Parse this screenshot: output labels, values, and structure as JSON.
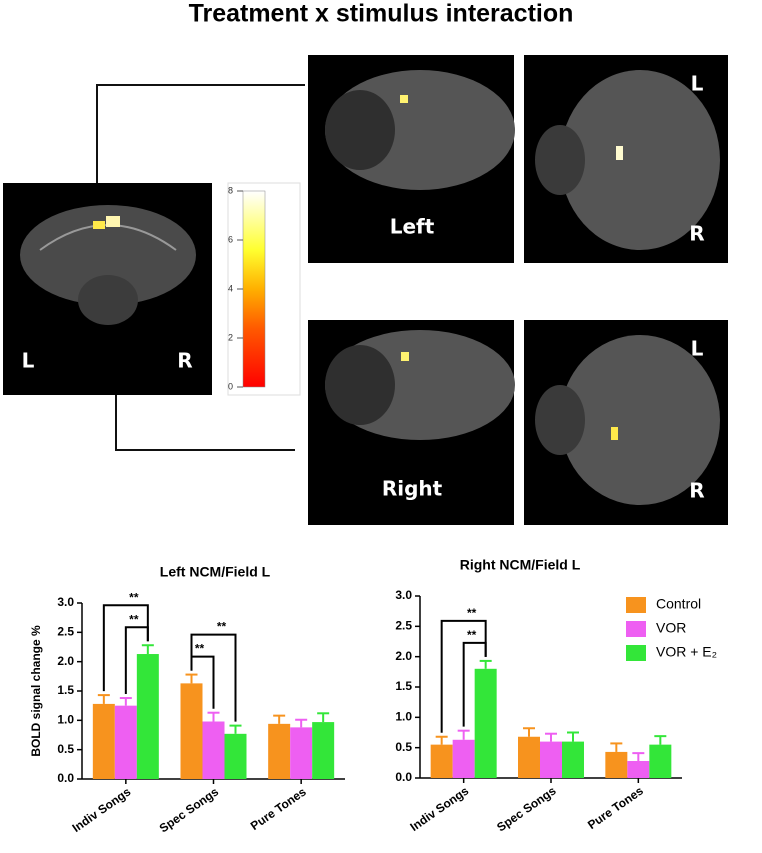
{
  "title": "Treatment x stimulus interaction",
  "coronal": {
    "left_label": "L",
    "right_label": "R"
  },
  "colorbar": {
    "lim": [
      0,
      8
    ],
    "ticks": [
      0,
      2,
      4,
      6,
      8
    ]
  },
  "panels": [
    {
      "label": "Left",
      "axial_top": "L",
      "axial_bottom": "R"
    },
    {
      "label": "Right",
      "axial_top": "L",
      "axial_bottom": "R"
    }
  ],
  "chart_data": [
    {
      "type": "bar",
      "title": "Left NCM/Field L",
      "y_label": "BOLD signal change %",
      "categories": [
        "Indiv Songs",
        "Spec Songs",
        "Pure Tones"
      ],
      "series": [
        {
          "name": "Control",
          "color": "#f7931e",
          "values": [
            1.28,
            1.63,
            0.94
          ],
          "errors": [
            0.15,
            0.15,
            0.14
          ]
        },
        {
          "name": "VOR",
          "color": "#ee5ff2",
          "values": [
            1.25,
            0.98,
            0.88
          ],
          "errors": [
            0.13,
            0.15,
            0.13
          ]
        },
        {
          "name": "VOR + E₂",
          "color": "#33e639",
          "values": [
            2.13,
            0.77,
            0.97
          ],
          "errors": [
            0.15,
            0.14,
            0.15
          ]
        }
      ],
      "ylim": [
        0,
        3
      ],
      "yticks": [
        {
          "value": 0,
          "label": "0.0"
        },
        0.5,
        {
          "value": 1,
          "label": "1.0"
        },
        1.5,
        {
          "value": 2,
          "label": "2.0"
        },
        2.5,
        {
          "value": 3,
          "label": "3.0"
        }
      ],
      "annotations": [
        {
          "category": 0,
          "from": 0,
          "to": 2,
          "label": "**"
        },
        {
          "category": 0,
          "from": 1,
          "to": 2,
          "label": "**"
        },
        {
          "category": 1,
          "from": 0,
          "to": 2,
          "label": "**"
        },
        {
          "category": 1,
          "from": 0,
          "to": 1,
          "label": "**"
        }
      ]
    },
    {
      "type": "bar",
      "title": "Right NCM/Field L",
      "legend": "upper right",
      "categories": [
        "Indiv Songs",
        "Spec Songs",
        "Pure Tones"
      ],
      "series": [
        {
          "name": "Control",
          "color": "#f7931e",
          "values": [
            0.55,
            0.68,
            0.43
          ],
          "errors": [
            0.13,
            0.14,
            0.14
          ]
        },
        {
          "name": "VOR",
          "color": "#ee5ff2",
          "values": [
            0.63,
            0.6,
            0.28
          ],
          "errors": [
            0.15,
            0.13,
            0.13
          ]
        },
        {
          "name": "VOR + E₂",
          "color": "#33e639",
          "values": [
            1.8,
            0.6,
            0.55
          ],
          "errors": [
            0.13,
            0.15,
            0.14
          ]
        }
      ],
      "ylim": [
        0,
        3
      ],
      "yticks": [
        {
          "value": 0,
          "label": "0.0"
        },
        0.5,
        {
          "value": 1,
          "label": "1.0"
        },
        1.5,
        {
          "value": 2,
          "label": "2.0"
        },
        2.5,
        {
          "value": 3,
          "label": "3.0"
        }
      ],
      "annotations": [
        {
          "category": 0,
          "from": 0,
          "to": 2,
          "label": "**"
        },
        {
          "category": 0,
          "from": 1,
          "to": 2,
          "label": "**"
        }
      ]
    }
  ]
}
